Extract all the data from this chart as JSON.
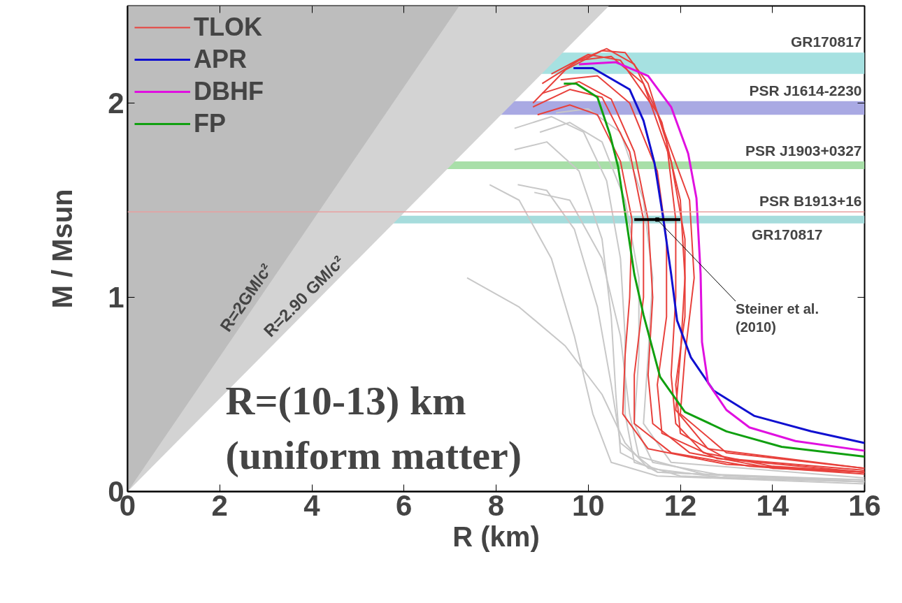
{
  "chart_data": {
    "type": "line",
    "xlabel": "R (km)",
    "ylabel": "M / Msun",
    "xlim": [
      0,
      16
    ],
    "ylim": [
      0,
      2.5
    ],
    "xticks": [
      0,
      2,
      4,
      6,
      8,
      10,
      12,
      14,
      16
    ],
    "yticks": [
      0,
      1,
      2
    ],
    "grid": false,
    "legend": "top left",
    "marker": "none",
    "line_style": "solid",
    "series": [
      {
        "type": "area",
        "name": "R=2.90 GM/c²",
        "color": "#d3d3d3",
        "x": [
          0,
          10.45
        ],
        "values": [
          0,
          2.5
        ]
      },
      {
        "type": "area",
        "name": "R=2GM/c²",
        "color": "#bdbdbd",
        "x": [
          0,
          7.2
        ],
        "values": [
          0,
          2.5
        ]
      },
      {
        "color": "#c8c8c8",
        "x": [
          8.4,
          9.2,
          9.9,
          10.4,
          10.7,
          10.8,
          10.8,
          11.0,
          12,
          16
        ],
        "values": [
          1.87,
          1.93,
          1.85,
          1.6,
          1.2,
          0.8,
          0.4,
          0.15,
          0.08,
          0.05
        ]
      },
      {
        "color": "#c8c8c8",
        "x": [
          8.95,
          9.6,
          10.3,
          10.8,
          11.1,
          11.1,
          11.0,
          11.4,
          13,
          16
        ],
        "values": [
          1.85,
          1.9,
          1.8,
          1.5,
          1.1,
          0.7,
          0.35,
          0.15,
          0.08,
          0.06
        ]
      },
      {
        "color": "#c8c8c8",
        "x": [
          8.4,
          9.1,
          9.8,
          10.3,
          10.5,
          10.6,
          10.7,
          11.5,
          16
        ],
        "values": [
          1.76,
          1.8,
          1.65,
          1.3,
          0.9,
          0.5,
          0.2,
          0.1,
          0.05
        ]
      },
      {
        "color": "#c8c8c8",
        "x": [
          7.86,
          8.5,
          9.2,
          9.7,
          10.1,
          10.5,
          11.5,
          16
        ],
        "values": [
          1.58,
          1.5,
          1.2,
          0.8,
          0.4,
          0.15,
          0.08,
          0.04
        ]
      },
      {
        "color": "#c8c8c8",
        "x": [
          8.47,
          9.1,
          9.7,
          10.2,
          10.5,
          10.7,
          11.5,
          16
        ],
        "values": [
          1.58,
          1.55,
          1.35,
          0.95,
          0.55,
          0.25,
          0.1,
          0.05
        ]
      },
      {
        "color": "#c8c8c8",
        "x": [
          8.83,
          9.6,
          10.3,
          10.7,
          10.9,
          11.1,
          12.5,
          16
        ],
        "values": [
          1.54,
          1.5,
          1.2,
          0.8,
          0.4,
          0.18,
          0.09,
          0.06
        ]
      },
      {
        "color": "#c8c8c8",
        "x": [
          7.37,
          8.5,
          9.5,
          10.3,
          10.8,
          11.3,
          13,
          16
        ],
        "values": [
          1.1,
          0.95,
          0.75,
          0.5,
          0.25,
          0.12,
          0.07,
          0.05
        ]
      },
      {
        "color": "#c8c8c8",
        "x": [
          9.3,
          10.0,
          10.7,
          11.2,
          11.4,
          11.3,
          11.2,
          11.8,
          16
        ],
        "values": [
          1.95,
          1.97,
          1.85,
          1.5,
          1.1,
          0.7,
          0.35,
          0.15,
          0.07
        ]
      },
      {
        "name": "TLOK",
        "color": "#e8413c",
        "x": [
          8.8,
          9.5,
          10.3,
          10.8,
          11.3,
          11.7,
          11.9,
          11.9,
          11.8,
          11.9,
          12.5,
          14,
          16
        ],
        "values": [
          2.0,
          2.17,
          2.27,
          2.26,
          2.1,
          1.8,
          1.4,
          1.0,
          0.6,
          0.35,
          0.2,
          0.13,
          0.1
        ]
      },
      {
        "color": "#e8413c",
        "x": [
          9.0,
          9.8,
          10.5,
          11.2,
          11.8,
          12.1,
          12.1,
          11.9,
          12.0,
          13,
          16
        ],
        "values": [
          2.1,
          2.22,
          2.24,
          2.1,
          1.7,
          1.3,
          0.9,
          0.55,
          0.3,
          0.17,
          0.11
        ]
      },
      {
        "color": "#e8413c",
        "x": [
          9.2,
          10.0,
          10.7,
          11.5,
          12.2,
          12.3,
          12.1,
          12.0,
          13,
          16
        ],
        "values": [
          2.15,
          2.25,
          2.22,
          1.95,
          1.5,
          1.1,
          0.7,
          0.4,
          0.2,
          0.12
        ]
      },
      {
        "color": "#e8413c",
        "x": [
          8.8,
          9.6,
          10.3,
          10.9,
          11.2,
          11.2,
          11.0,
          11.0,
          11.8,
          13.5,
          16
        ],
        "values": [
          1.98,
          2.07,
          2.03,
          1.75,
          1.4,
          1.0,
          0.6,
          0.35,
          0.2,
          0.13,
          0.09
        ]
      },
      {
        "color": "#e8413c",
        "x": [
          9.0,
          9.8,
          10.5,
          11.0,
          11.3,
          11.4,
          11.3,
          11.4,
          12.2,
          14,
          16
        ],
        "values": [
          2.05,
          2.11,
          2.02,
          1.75,
          1.4,
          1.0,
          0.6,
          0.35,
          0.2,
          0.12,
          0.1
        ]
      },
      {
        "color": "#e8413c",
        "x": [
          8.9,
          9.6,
          10.2,
          10.7,
          10.95,
          10.9,
          10.8,
          10.75,
          11.3,
          13,
          16
        ],
        "values": [
          1.94,
          1.99,
          1.94,
          1.7,
          1.4,
          1.0,
          0.7,
          0.4,
          0.22,
          0.14,
          0.1
        ]
      },
      {
        "color": "#e8413c",
        "x": [
          9.4,
          10.2,
          10.9,
          11.5,
          11.7,
          11.7,
          11.5,
          11.6,
          12.8,
          16
        ],
        "values": [
          2.12,
          2.14,
          2.0,
          1.65,
          1.3,
          0.9,
          0.55,
          0.3,
          0.17,
          0.1
        ]
      },
      {
        "color": "#e8413c",
        "x": [
          9.6,
          10.4,
          11.0,
          11.6,
          12.0,
          12.1,
          12.0,
          11.9,
          12.6,
          16
        ],
        "values": [
          2.2,
          2.28,
          2.2,
          1.9,
          1.5,
          1.1,
          0.7,
          0.42,
          0.22,
          0.12
        ]
      },
      {
        "name": "APR",
        "color": "#1010d0",
        "x": [
          9.68,
          10.1,
          10.9,
          11.2,
          11.44,
          11.62,
          11.8,
          11.93,
          12.23,
          12.72,
          13.6,
          14.84,
          16
        ],
        "values": [
          2.18,
          2.18,
          2.07,
          1.91,
          1.69,
          1.42,
          1.12,
          0.88,
          0.69,
          0.52,
          0.39,
          0.31,
          0.25
        ]
      },
      {
        "name": "DBHF",
        "color": "#e010e0",
        "x": [
          9.8,
          10.6,
          11.3,
          11.8,
          12.17,
          12.35,
          12.44,
          12.47,
          12.6,
          13.0,
          13.5,
          14.5,
          16
        ],
        "values": [
          2.2,
          2.21,
          2.14,
          1.98,
          1.74,
          1.51,
          1.12,
          0.77,
          0.56,
          0.42,
          0.33,
          0.26,
          0.21
        ]
      },
      {
        "name": "FP",
        "color": "#10a010",
        "x": [
          9.47,
          9.74,
          10.2,
          10.47,
          10.65,
          10.83,
          11.0,
          11.2,
          11.56,
          12.1,
          13.0,
          14.2,
          16
        ],
        "values": [
          2.1,
          2.1,
          2.03,
          1.84,
          1.67,
          1.39,
          1.12,
          0.91,
          0.59,
          0.41,
          0.31,
          0.23,
          0.18
        ]
      },
      {
        "type": "scatter",
        "marker": "square",
        "color": "#000000",
        "x": [
          11.5
        ],
        "values": [
          1.4
        ],
        "xerrors": [
          0.5
        ]
      }
    ],
    "bands": [
      {
        "axis": "y",
        "from": 2.15,
        "to": 2.26,
        "label": "GR170817",
        "color": "#a6e1e1"
      },
      {
        "axis": "y",
        "from": 1.94,
        "to": 2.01,
        "label": "PSR J1614-2230",
        "color": "#a9a9e3"
      },
      {
        "axis": "y",
        "from": 1.66,
        "to": 1.7,
        "label": "PSR J1903+0327",
        "color": "#a8dfa8"
      },
      {
        "axis": "y",
        "from": 1.38,
        "to": 1.42,
        "label": "GR170817",
        "color": "#a6dcdc"
      }
    ],
    "ref_lines": [
      {
        "axis": "y",
        "value": 1.44,
        "label": "PSR B1913+16",
        "color": "#e8a0a0"
      }
    ],
    "annotations": [
      {
        "text": "Steiner et al.\n(2010)",
        "x": 11.5,
        "y": 1.4
      },
      "R=(10-13) km\n(uniform matter)"
    ]
  }
}
